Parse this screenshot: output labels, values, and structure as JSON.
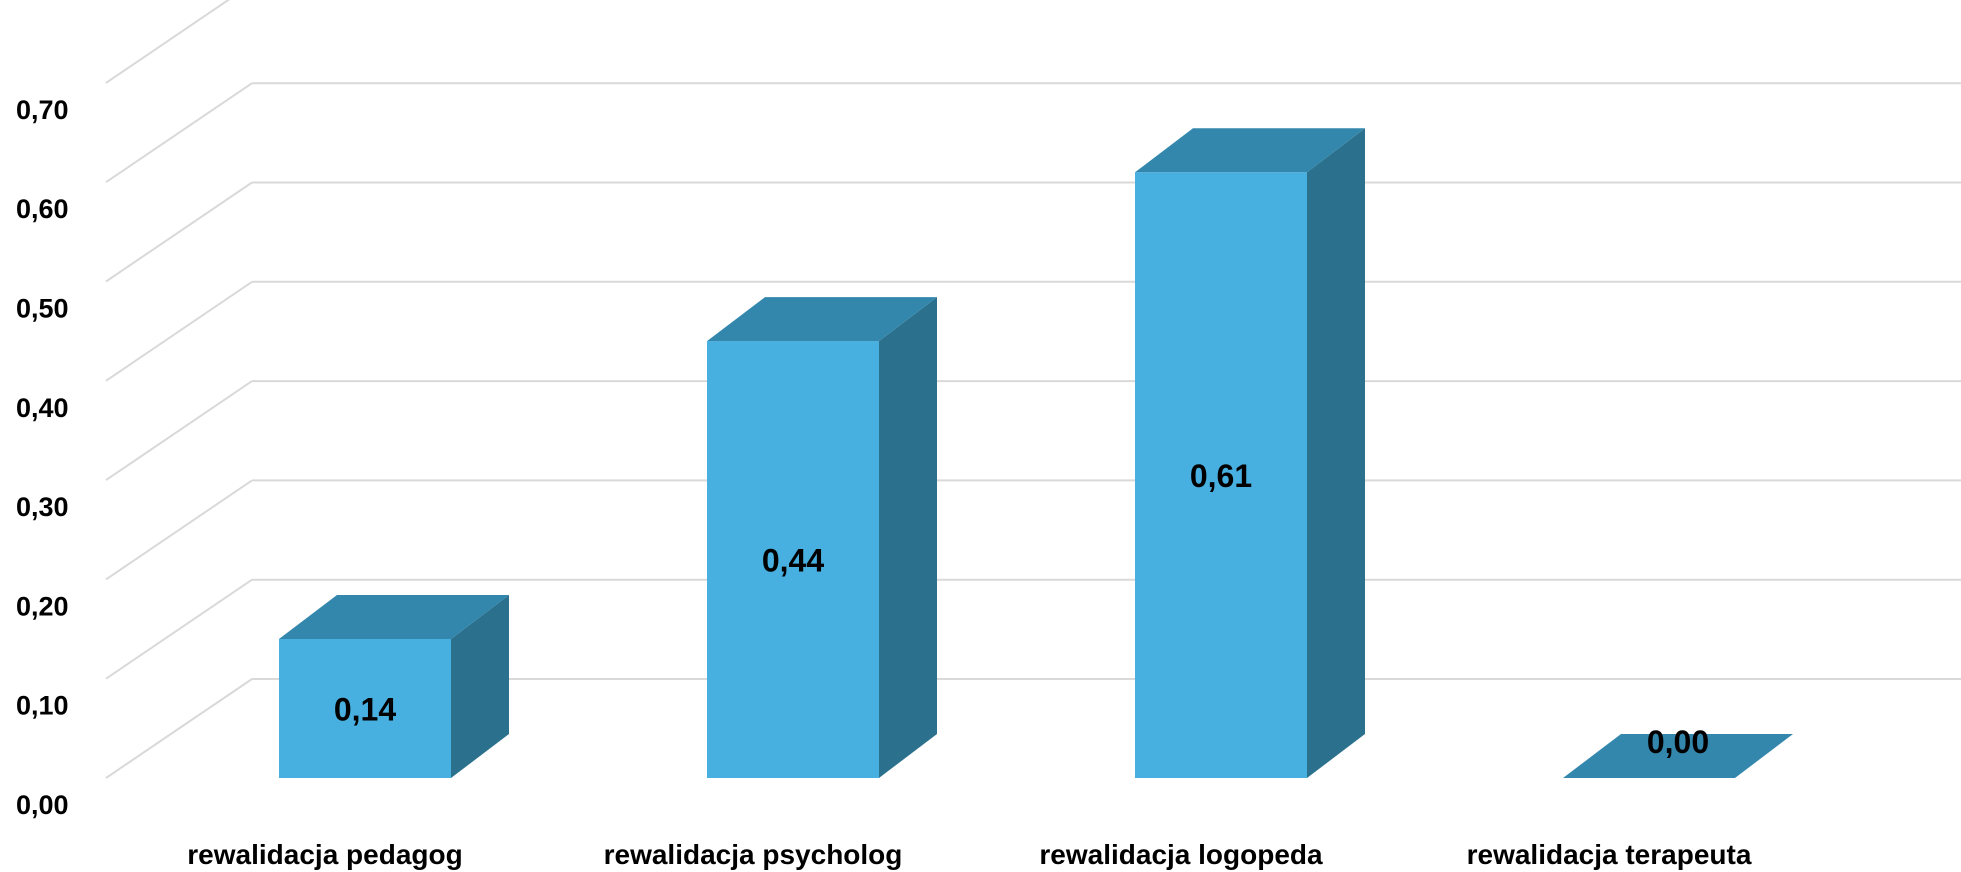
{
  "chart_data": {
    "type": "bar",
    "style": "3d-column",
    "categories": [
      "rewalidacja pedagog",
      "rewalidacja psycholog",
      "rewalidacja logopeda",
      "rewalidacja terapeuta"
    ],
    "series": [
      {
        "values": [
          0.14,
          0.44,
          0.61,
          0.0
        ]
      }
    ],
    "value_labels": [
      "0,14",
      "0,44",
      "0,61",
      "0,00"
    ],
    "y_ticks": [
      {
        "value": 0.0,
        "label": "0,00"
      },
      {
        "value": 0.1,
        "label": "0,10"
      },
      {
        "value": 0.2,
        "label": "0,20"
      },
      {
        "value": 0.3,
        "label": "0,30"
      },
      {
        "value": 0.4,
        "label": "0,40"
      },
      {
        "value": 0.5,
        "label": "0,50"
      },
      {
        "value": 0.6,
        "label": "0,60"
      },
      {
        "value": 0.7,
        "label": "0,70"
      }
    ],
    "ylim": [
      0,
      0.8
    ],
    "grid": true,
    "legend": "none",
    "colors": {
      "front": "#47b0e0",
      "top": "#3387ad",
      "side": "#2b718d",
      "grid": "#d9d9d9"
    }
  }
}
